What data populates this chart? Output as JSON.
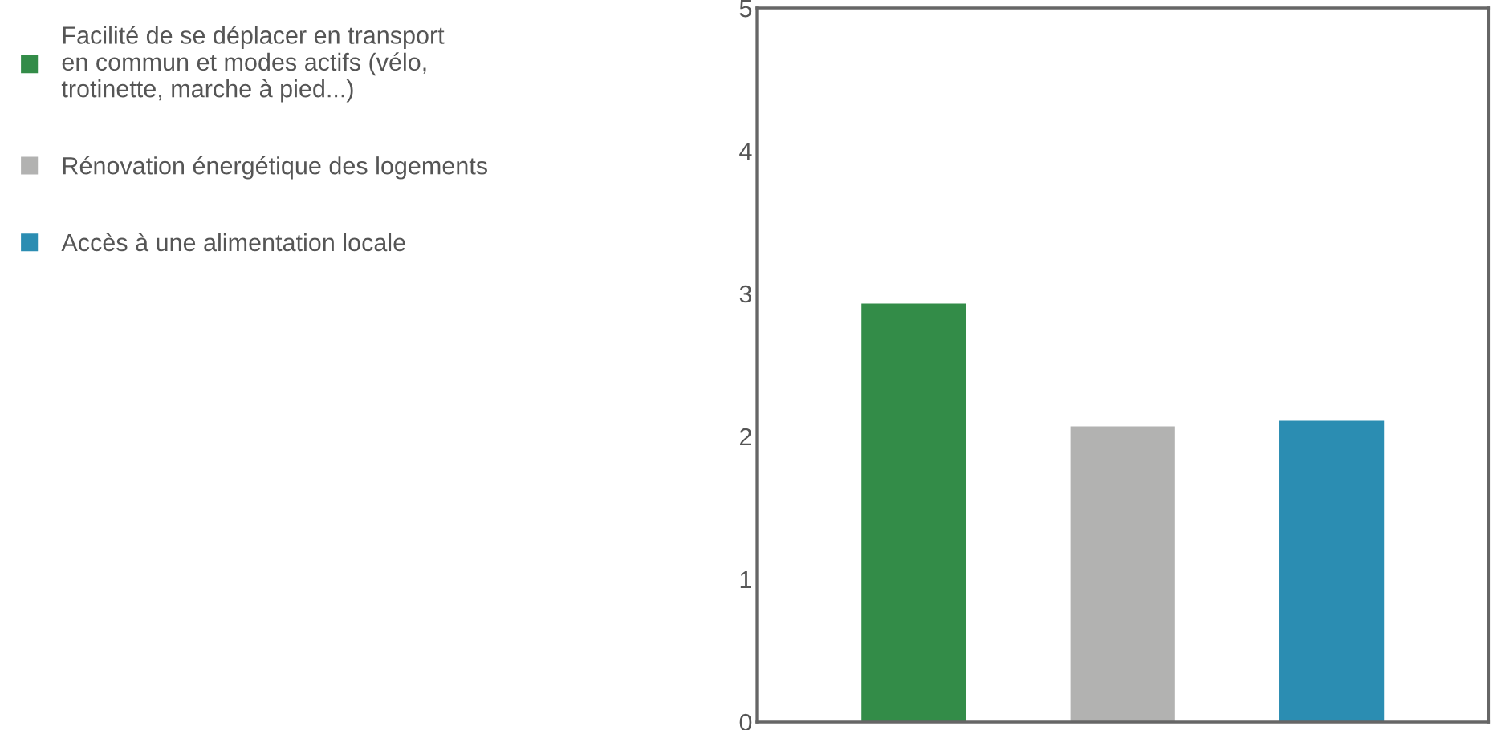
{
  "chart_data": {
    "type": "bar",
    "categories": [
      null,
      null,
      null
    ],
    "series": [
      {
        "name": "Facilité de se déplacer en transport en commun et modes actifs (vélo, trotinette, marche à pied...)",
        "color": "#338c48",
        "values": [
          2.93,
          null,
          null
        ]
      },
      {
        "name": "Rénovation énergétique des logements",
        "color": "#b2b2b1",
        "values": [
          null,
          2.07,
          null
        ]
      },
      {
        "name": "Accès à une alimentation locale",
        "color": "#2b8db2",
        "values": [
          null,
          null,
          2.11
        ]
      }
    ],
    "ylim": [
      0,
      5
    ],
    "yticks": [
      0,
      1,
      2,
      3,
      4,
      5
    ],
    "grid": false,
    "legend": "left"
  }
}
